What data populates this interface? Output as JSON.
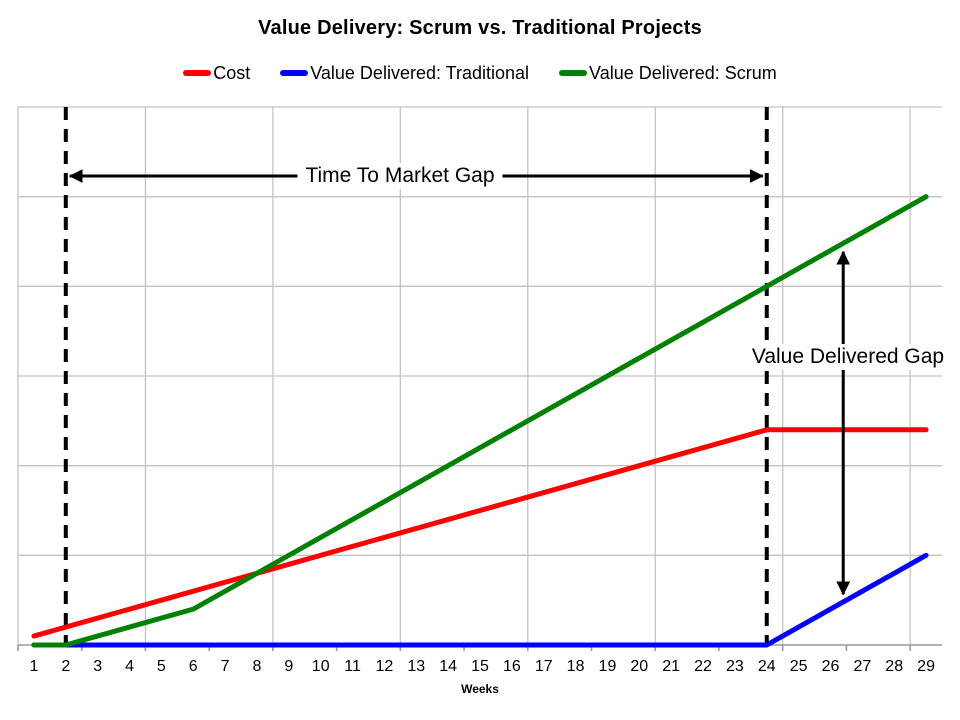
{
  "title": "Value Delivery: Scrum vs. Traditional Projects",
  "chart_data": {
    "type": "line",
    "title": "Value Delivery: Scrum vs. Traditional Projects",
    "xlabel": "Weeks",
    "x": [
      1,
      2,
      3,
      4,
      5,
      6,
      7,
      8,
      9,
      10,
      11,
      12,
      13,
      14,
      15,
      16,
      17,
      18,
      19,
      20,
      21,
      22,
      23,
      24,
      25,
      26,
      27,
      28,
      29
    ],
    "ylim": [
      0,
      6
    ],
    "y_gridline_step": 1,
    "y_tick_labels": "none",
    "x_gridline_every_weeks": 4,
    "x_tick_every_weeks": 2,
    "grid": true,
    "legend_position": "top",
    "series": [
      {
        "name": "Cost",
        "color": "#fe0000",
        "points": [
          [
            1,
            0.1
          ],
          [
            24,
            2.4
          ],
          [
            29,
            2.4
          ]
        ]
      },
      {
        "name": "Value Delivered: Traditional",
        "color": "#0000fe",
        "points": [
          [
            1,
            0
          ],
          [
            24,
            0
          ],
          [
            29,
            1.0
          ]
        ]
      },
      {
        "name": "Value Delivered: Scrum",
        "color": "#008000",
        "points": [
          [
            1,
            0
          ],
          [
            2,
            0
          ],
          [
            6,
            0.4
          ],
          [
            29,
            5.0
          ]
        ]
      }
    ],
    "annotations": {
      "dashed_vlines_at_weeks": [
        2,
        24
      ],
      "time_to_market_gap": {
        "label": "Time To Market Gap",
        "from_week": 2,
        "to_week": 24,
        "y_value": 5.23
      },
      "value_delivered_gap": {
        "label": "Value Delivered Gap",
        "at_week": 26.4,
        "from_value": 4.43,
        "to_value": 0.52
      }
    },
    "colors": {
      "gridline": "#c3c3c3",
      "axis": "#9a9a9a",
      "dashed_line": "#000000",
      "annotation": "#000000"
    }
  }
}
